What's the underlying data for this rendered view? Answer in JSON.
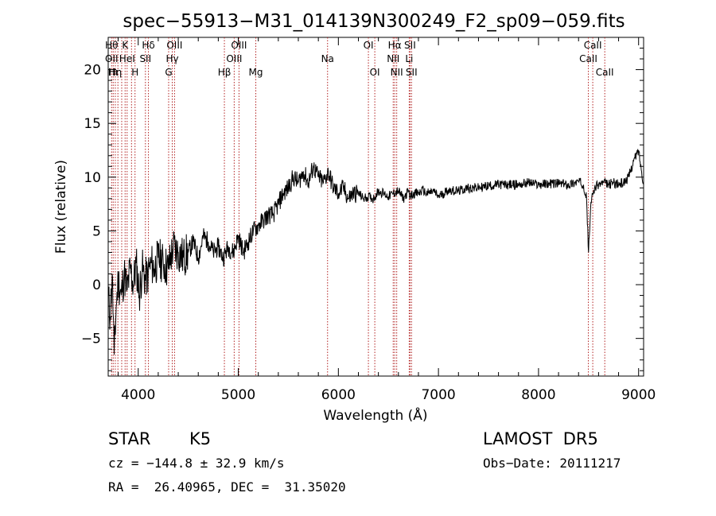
{
  "chart_data": {
    "type": "line",
    "title": "spec−55913−M31_014139N300249_F2_sp09−059.fits",
    "xlabel": "Wavelength (Å)",
    "ylabel": "Flux (relative)",
    "xlim": [
      3700,
      9050
    ],
    "ylim": [
      -8.5,
      23
    ],
    "x_ticks": [
      4000,
      5000,
      6000,
      7000,
      8000,
      9000
    ],
    "x_tick_labels": [
      "4000",
      "5000",
      "6000",
      "7000",
      "8000",
      "9000"
    ],
    "y_ticks": [
      -5,
      0,
      5,
      10,
      15,
      20
    ],
    "y_tick_labels": [
      "−5",
      "0",
      "5",
      "10",
      "15",
      "20"
    ],
    "grid": false,
    "line_color": "#000000",
    "marker_color": "#b22222",
    "series": [
      {
        "x": [
          3700,
          3720,
          3740,
          3760,
          3780,
          3800,
          3830,
          3860,
          3890,
          3920,
          3950,
          3980,
          4010,
          4040,
          4070,
          4100,
          4130,
          4160,
          4200,
          4250,
          4300,
          4350,
          4400,
          4450,
          4500,
          4550,
          4600,
          4650,
          4700,
          4750,
          4800,
          4850,
          4900,
          4950,
          5000,
          5050,
          5100,
          5150,
          5200,
          5250,
          5300,
          5350,
          5400,
          5450,
          5500,
          5550,
          5600,
          5650,
          5700,
          5750,
          5800,
          5850,
          5900,
          5950,
          6000,
          6050,
          6100,
          6150,
          6200,
          6250,
          6300,
          6350,
          6400,
          6450,
          6500,
          6550,
          6600,
          6650,
          6700,
          6720,
          6750,
          6800,
          6850,
          6870,
          6900,
          6950,
          7000,
          7100,
          7200,
          7300,
          7400,
          7500,
          7600,
          7700,
          7800,
          7900,
          8000,
          8100,
          8200,
          8300,
          8400,
          8450,
          8480,
          8500,
          8520,
          8540,
          8560,
          8600,
          8650,
          8700,
          8750,
          8800,
          8850,
          8900,
          8950,
          9000,
          9030,
          9050
        ],
        "y": [
          -1,
          -3,
          1,
          -6.5,
          -2,
          0.5,
          -1,
          1,
          -0.5,
          1.5,
          0,
          2,
          -1,
          1.5,
          0.5,
          1,
          2,
          1.5,
          2.5,
          2,
          1.5,
          3.5,
          3,
          2.5,
          3,
          4,
          2.5,
          4.5,
          4,
          3,
          3.5,
          2.5,
          3.5,
          3,
          4.5,
          3,
          4,
          5,
          5.5,
          6,
          6.5,
          6.5,
          7.5,
          8.5,
          9,
          10,
          9.5,
          10.5,
          9.5,
          11,
          10,
          9.5,
          10.5,
          9,
          8.5,
          9,
          8,
          8.5,
          8.5,
          8,
          8.2,
          8,
          8.7,
          8.5,
          8.2,
          8.5,
          8.7,
          8,
          8.7,
          8.2,
          8.5,
          8.5,
          8.8,
          8.5,
          8.5,
          8.7,
          8.2,
          8.8,
          8.7,
          9,
          9,
          9.2,
          9.3,
          9.3,
          9.3,
          9.5,
          9.3,
          9.4,
          9.4,
          9.3,
          9.6,
          9.3,
          8,
          3,
          7,
          8.5,
          9,
          9.3,
          9.5,
          9.3,
          9.5,
          9.3,
          9.5,
          10,
          11.5,
          12.5,
          10.5,
          9.5
        ]
      }
    ],
    "lines": [
      {
        "x": 3734,
        "rows": [
          "Hθ",
          "OII"
        ]
      },
      {
        "x": 3750,
        "rows": [
          "",
          "",
          "Hι"
        ]
      },
      {
        "x": 3771,
        "rows": [
          "",
          "",
          "Hη"
        ]
      },
      {
        "x": 3797,
        "rows": []
      },
      {
        "x": 3835,
        "rows": []
      },
      {
        "x": 3869,
        "rows": [
          "K"
        ]
      },
      {
        "x": 3889,
        "rows": [
          "",
          "HeI"
        ]
      },
      {
        "x": 3933,
        "rows": []
      },
      {
        "x": 3968,
        "rows": [
          "",
          "",
          "H"
        ]
      },
      {
        "x": 4072,
        "rows": [
          "",
          "SII"
        ]
      },
      {
        "x": 4102,
        "rows": [
          "Hδ"
        ]
      },
      {
        "x": 4304,
        "rows": [
          "",
          "",
          "G"
        ]
      },
      {
        "x": 4340,
        "rows": [
          "",
          "Hγ"
        ]
      },
      {
        "x": 4363,
        "rows": [
          "OIII"
        ]
      },
      {
        "x": 4861,
        "rows": [
          "",
          "",
          "Hβ"
        ]
      },
      {
        "x": 4959,
        "rows": [
          "",
          "OIII"
        ]
      },
      {
        "x": 5007,
        "rows": [
          "OIII"
        ]
      },
      {
        "x": 5175,
        "rows": [
          "",
          "",
          "Mg"
        ]
      },
      {
        "x": 5892,
        "rows": [
          "",
          "Na"
        ]
      },
      {
        "x": 6300,
        "rows": [
          "OI"
        ]
      },
      {
        "x": 6364,
        "rows": [
          "",
          "",
          "OI"
        ]
      },
      {
        "x": 6548,
        "rows": [
          "",
          "NII"
        ]
      },
      {
        "x": 6563,
        "rows": [
          "Hα"
        ]
      },
      {
        "x": 6583,
        "rows": [
          "",
          "",
          "NII"
        ]
      },
      {
        "x": 6708,
        "rows": [
          "",
          "Li"
        ]
      },
      {
        "x": 6716,
        "rows": [
          "SII"
        ]
      },
      {
        "x": 6731,
        "rows": [
          "",
          "",
          "SII"
        ]
      },
      {
        "x": 8498,
        "rows": [
          "",
          "CaII"
        ]
      },
      {
        "x": 8542,
        "rows": [
          "CaII"
        ]
      },
      {
        "x": 8662,
        "rows": [
          "",
          "",
          "CaII"
        ]
      }
    ]
  },
  "info": {
    "object_class": "STAR",
    "subclass": "K5",
    "survey": "LAMOST  DR5",
    "redshift_line": "cz = −144.8 ± 32.9 km/s",
    "obs_date_line": "Obs−Date: 20111217",
    "coords_line": "RA =  26.40965, DEC =  31.35020"
  }
}
